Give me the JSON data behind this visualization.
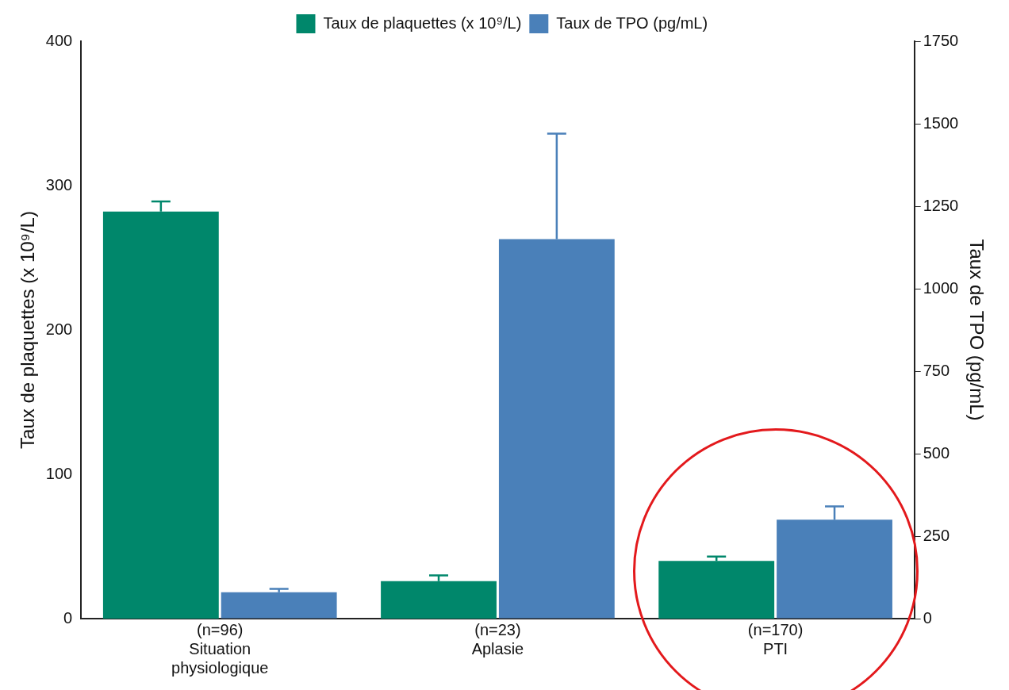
{
  "chart_data": {
    "type": "bar",
    "categories": [
      "(n=96)\nSituation\nphysiologique",
      "(n=23)\nAplasie",
      "(n=170)\nPTI"
    ],
    "series": [
      {
        "name": "Taux de plaquettes (x 10⁹/L)",
        "color": "#00876b",
        "values": [
          282,
          26,
          40
        ],
        "errors": [
          [
            282,
            289
          ],
          [
            26,
            30
          ],
          [
            40,
            43
          ]
        ]
      },
      {
        "name": "Taux de TPO (pg/mL)",
        "color": "#4a80b9",
        "values": [
          80,
          1150,
          300
        ],
        "errors": [
          [
            80,
            90
          ],
          [
            1150,
            1470
          ],
          [
            300,
            340
          ]
        ],
        "axis": "y2"
      }
    ],
    "ylabel": "Taux de plaquettes (x 10⁹/L)",
    "y2label": "Taux de TPO (pg/mL)",
    "ylim": [
      0,
      400
    ],
    "yticks": [
      0,
      100,
      200,
      300,
      400
    ],
    "y2lim": [
      0,
      1750
    ],
    "y2ticks": [
      0,
      250,
      500,
      750,
      1000,
      1250,
      1500,
      1750
    ],
    "grid": false,
    "legend": "top"
  }
}
